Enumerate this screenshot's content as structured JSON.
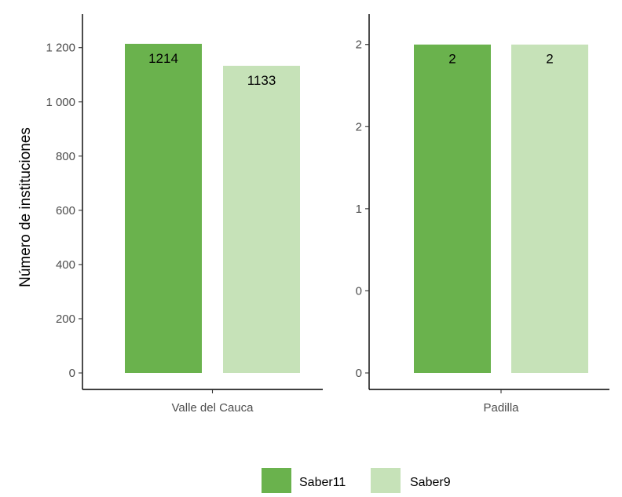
{
  "chart_data": [
    {
      "type": "bar",
      "categories": [
        "Valle del Cauca"
      ],
      "series": [
        {
          "name": "Saber11",
          "values": [
            1214
          ]
        },
        {
          "name": "Saber9",
          "values": [
            1133
          ]
        }
      ],
      "data_labels": [
        "1214",
        "1133"
      ],
      "ylabel": "Número de instituciones",
      "ylim": [
        0,
        1260
      ],
      "yticks": [
        0,
        200,
        400,
        600,
        800,
        1000,
        1200
      ],
      "ytick_labels": [
        "0",
        "200",
        "400",
        "600",
        "800",
        "1 000",
        "1 200"
      ],
      "grid": false
    },
    {
      "type": "bar",
      "categories": [
        "Padilla"
      ],
      "series": [
        {
          "name": "Saber11",
          "values": [
            2
          ]
        },
        {
          "name": "Saber9",
          "values": [
            2
          ]
        }
      ],
      "data_labels": [
        "2",
        "2"
      ],
      "ylim": [
        0,
        2.08
      ],
      "yticks": [
        0,
        0.5,
        1,
        1.5,
        2
      ],
      "ytick_labels": [
        "0",
        "0",
        "1",
        "2",
        "2"
      ],
      "grid": false
    }
  ],
  "legend": {
    "position": "bottom",
    "items": [
      {
        "label": "Saber11",
        "color": "#6ab24d"
      },
      {
        "label": "Saber9",
        "color": "#c6e2b8"
      }
    ]
  },
  "colors": {
    "Saber11": "#6ab24d",
    "Saber9": "#c6e2b8"
  }
}
